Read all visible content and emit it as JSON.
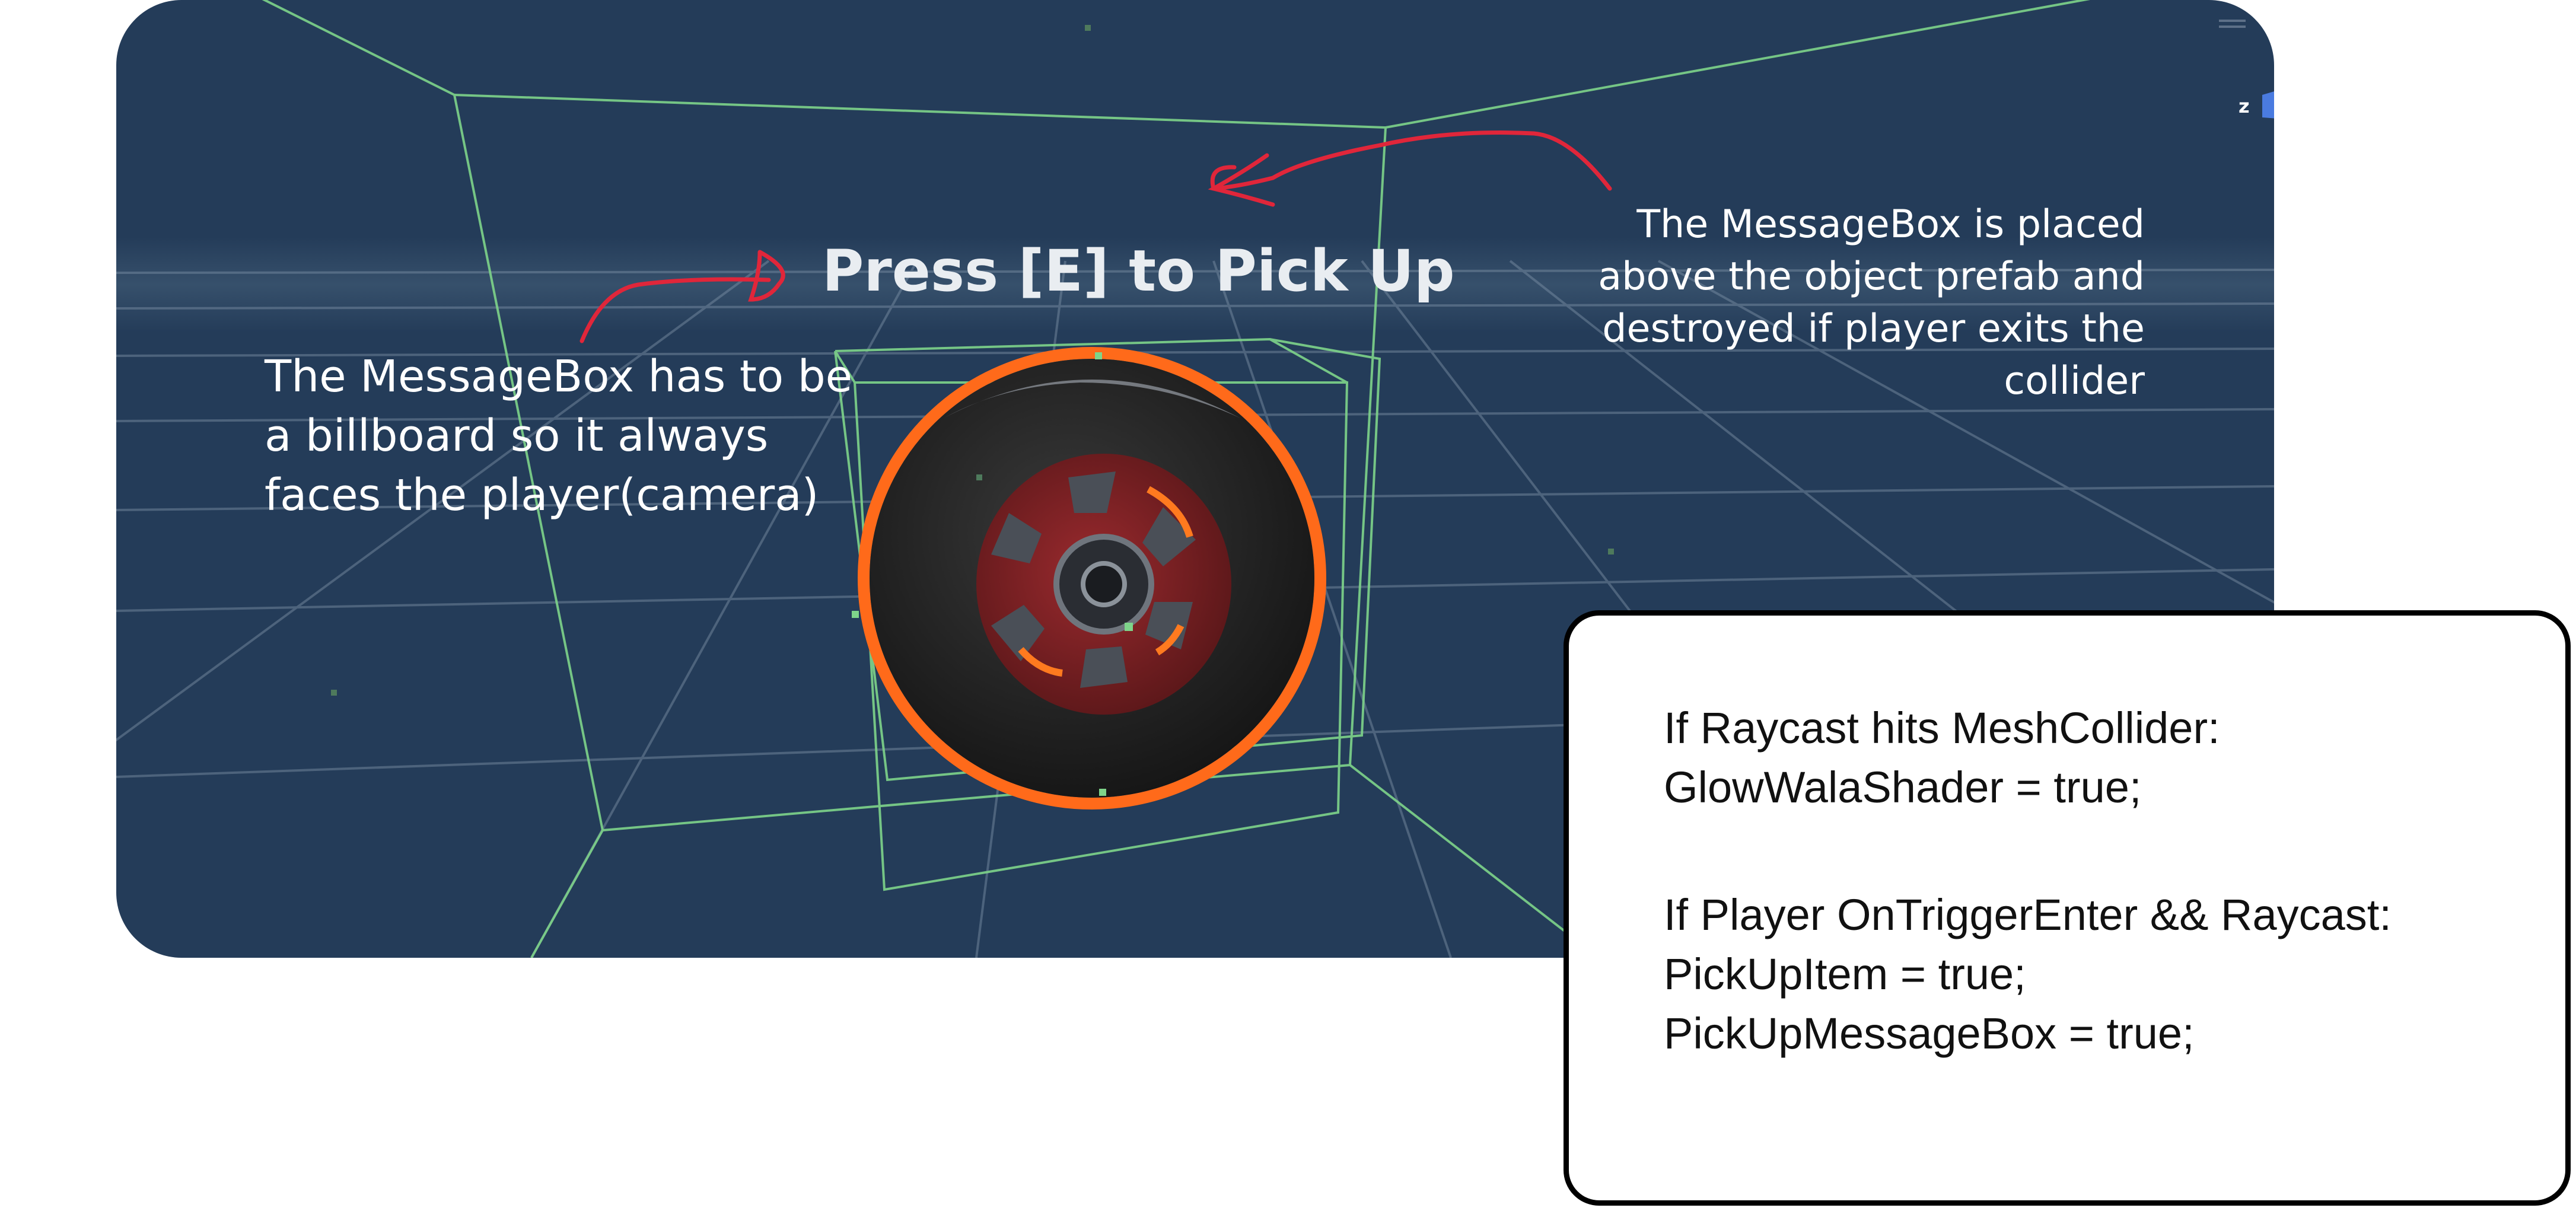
{
  "scene": {
    "prompt_text": "Press [E] to Pick Up",
    "axis_label": "z",
    "object": "car-wheel"
  },
  "annotations": {
    "left": "The MessageBox has to be\na billboard so it always\nfaces the player(camera)",
    "right": "The MessageBox is placed\nabove the object prefab and\ndestroyed if player exits the\ncollider"
  },
  "code_box": {
    "block1": "If Raycast hits MeshCollider:\nGlowWalaShader = true;",
    "block2": "If Player OnTriggerEnter && Raycast:\nPickUpItem = true;\nPickUpMessageBox = true;"
  },
  "colors": {
    "scene_background": "#243c59",
    "collider_wireframe": "#7ed48a",
    "outline_glow": "#ff6a1a",
    "annotation_arrow": "#e0263a",
    "rim": "#7a2226"
  }
}
